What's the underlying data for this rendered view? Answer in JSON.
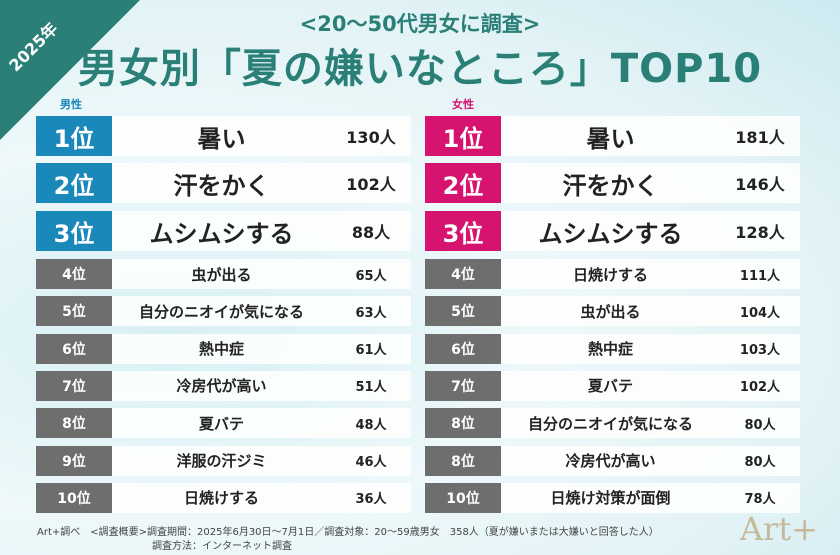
{
  "year_badge": "2025年",
  "subtitle": "<20～50代男女に調査>",
  "title": "男女別「夏の嫌いなところ」TOP10",
  "colors": {
    "title": "#2a7f77",
    "male": "#1a88b8",
    "female": "#d6136e",
    "lower_rank": "#6e6e6e"
  },
  "male": {
    "label": "男性",
    "rows": [
      {
        "rank": "1位",
        "item": "暑い",
        "count": "130人"
      },
      {
        "rank": "2位",
        "item": "汗をかく",
        "count": "102人"
      },
      {
        "rank": "3位",
        "item": "ムシムシする",
        "count": "88人"
      },
      {
        "rank": "4位",
        "item": "虫が出る",
        "count": "65人"
      },
      {
        "rank": "5位",
        "item": "自分のニオイが気になる",
        "count": "63人"
      },
      {
        "rank": "6位",
        "item": "熱中症",
        "count": "61人"
      },
      {
        "rank": "7位",
        "item": "冷房代が高い",
        "count": "51人"
      },
      {
        "rank": "8位",
        "item": "夏バテ",
        "count": "48人"
      },
      {
        "rank": "9位",
        "item": "洋服の汗ジミ",
        "count": "46人"
      },
      {
        "rank": "10位",
        "item": "日焼けする",
        "count": "36人"
      }
    ]
  },
  "female": {
    "label": "女性",
    "rows": [
      {
        "rank": "1位",
        "item": "暑い",
        "count": "181人"
      },
      {
        "rank": "2位",
        "item": "汗をかく",
        "count": "146人"
      },
      {
        "rank": "3位",
        "item": "ムシムシする",
        "count": "128人"
      },
      {
        "rank": "4位",
        "item": "日焼けする",
        "count": "111人"
      },
      {
        "rank": "5位",
        "item": "虫が出る",
        "count": "104人"
      },
      {
        "rank": "6位",
        "item": "熱中症",
        "count": "103人"
      },
      {
        "rank": "7位",
        "item": "夏バテ",
        "count": "102人"
      },
      {
        "rank": "8位",
        "item": "自分のニオイが気になる",
        "count": "80人"
      },
      {
        "rank": "8位",
        "item": "冷房代が高い",
        "count": "80人"
      },
      {
        "rank": "10位",
        "item": "日焼け対策が面倒",
        "count": "78人"
      }
    ]
  },
  "footer": {
    "line1": "Art+調べ　<調査概要>調査期間：2025年6月30日～7月1日／調査対象：20～59歳男女　358人（夏が嫌いまたは大嫌いと回答した人）",
    "line2": "調査方法：インターネット調査"
  },
  "logo": "Art+"
}
